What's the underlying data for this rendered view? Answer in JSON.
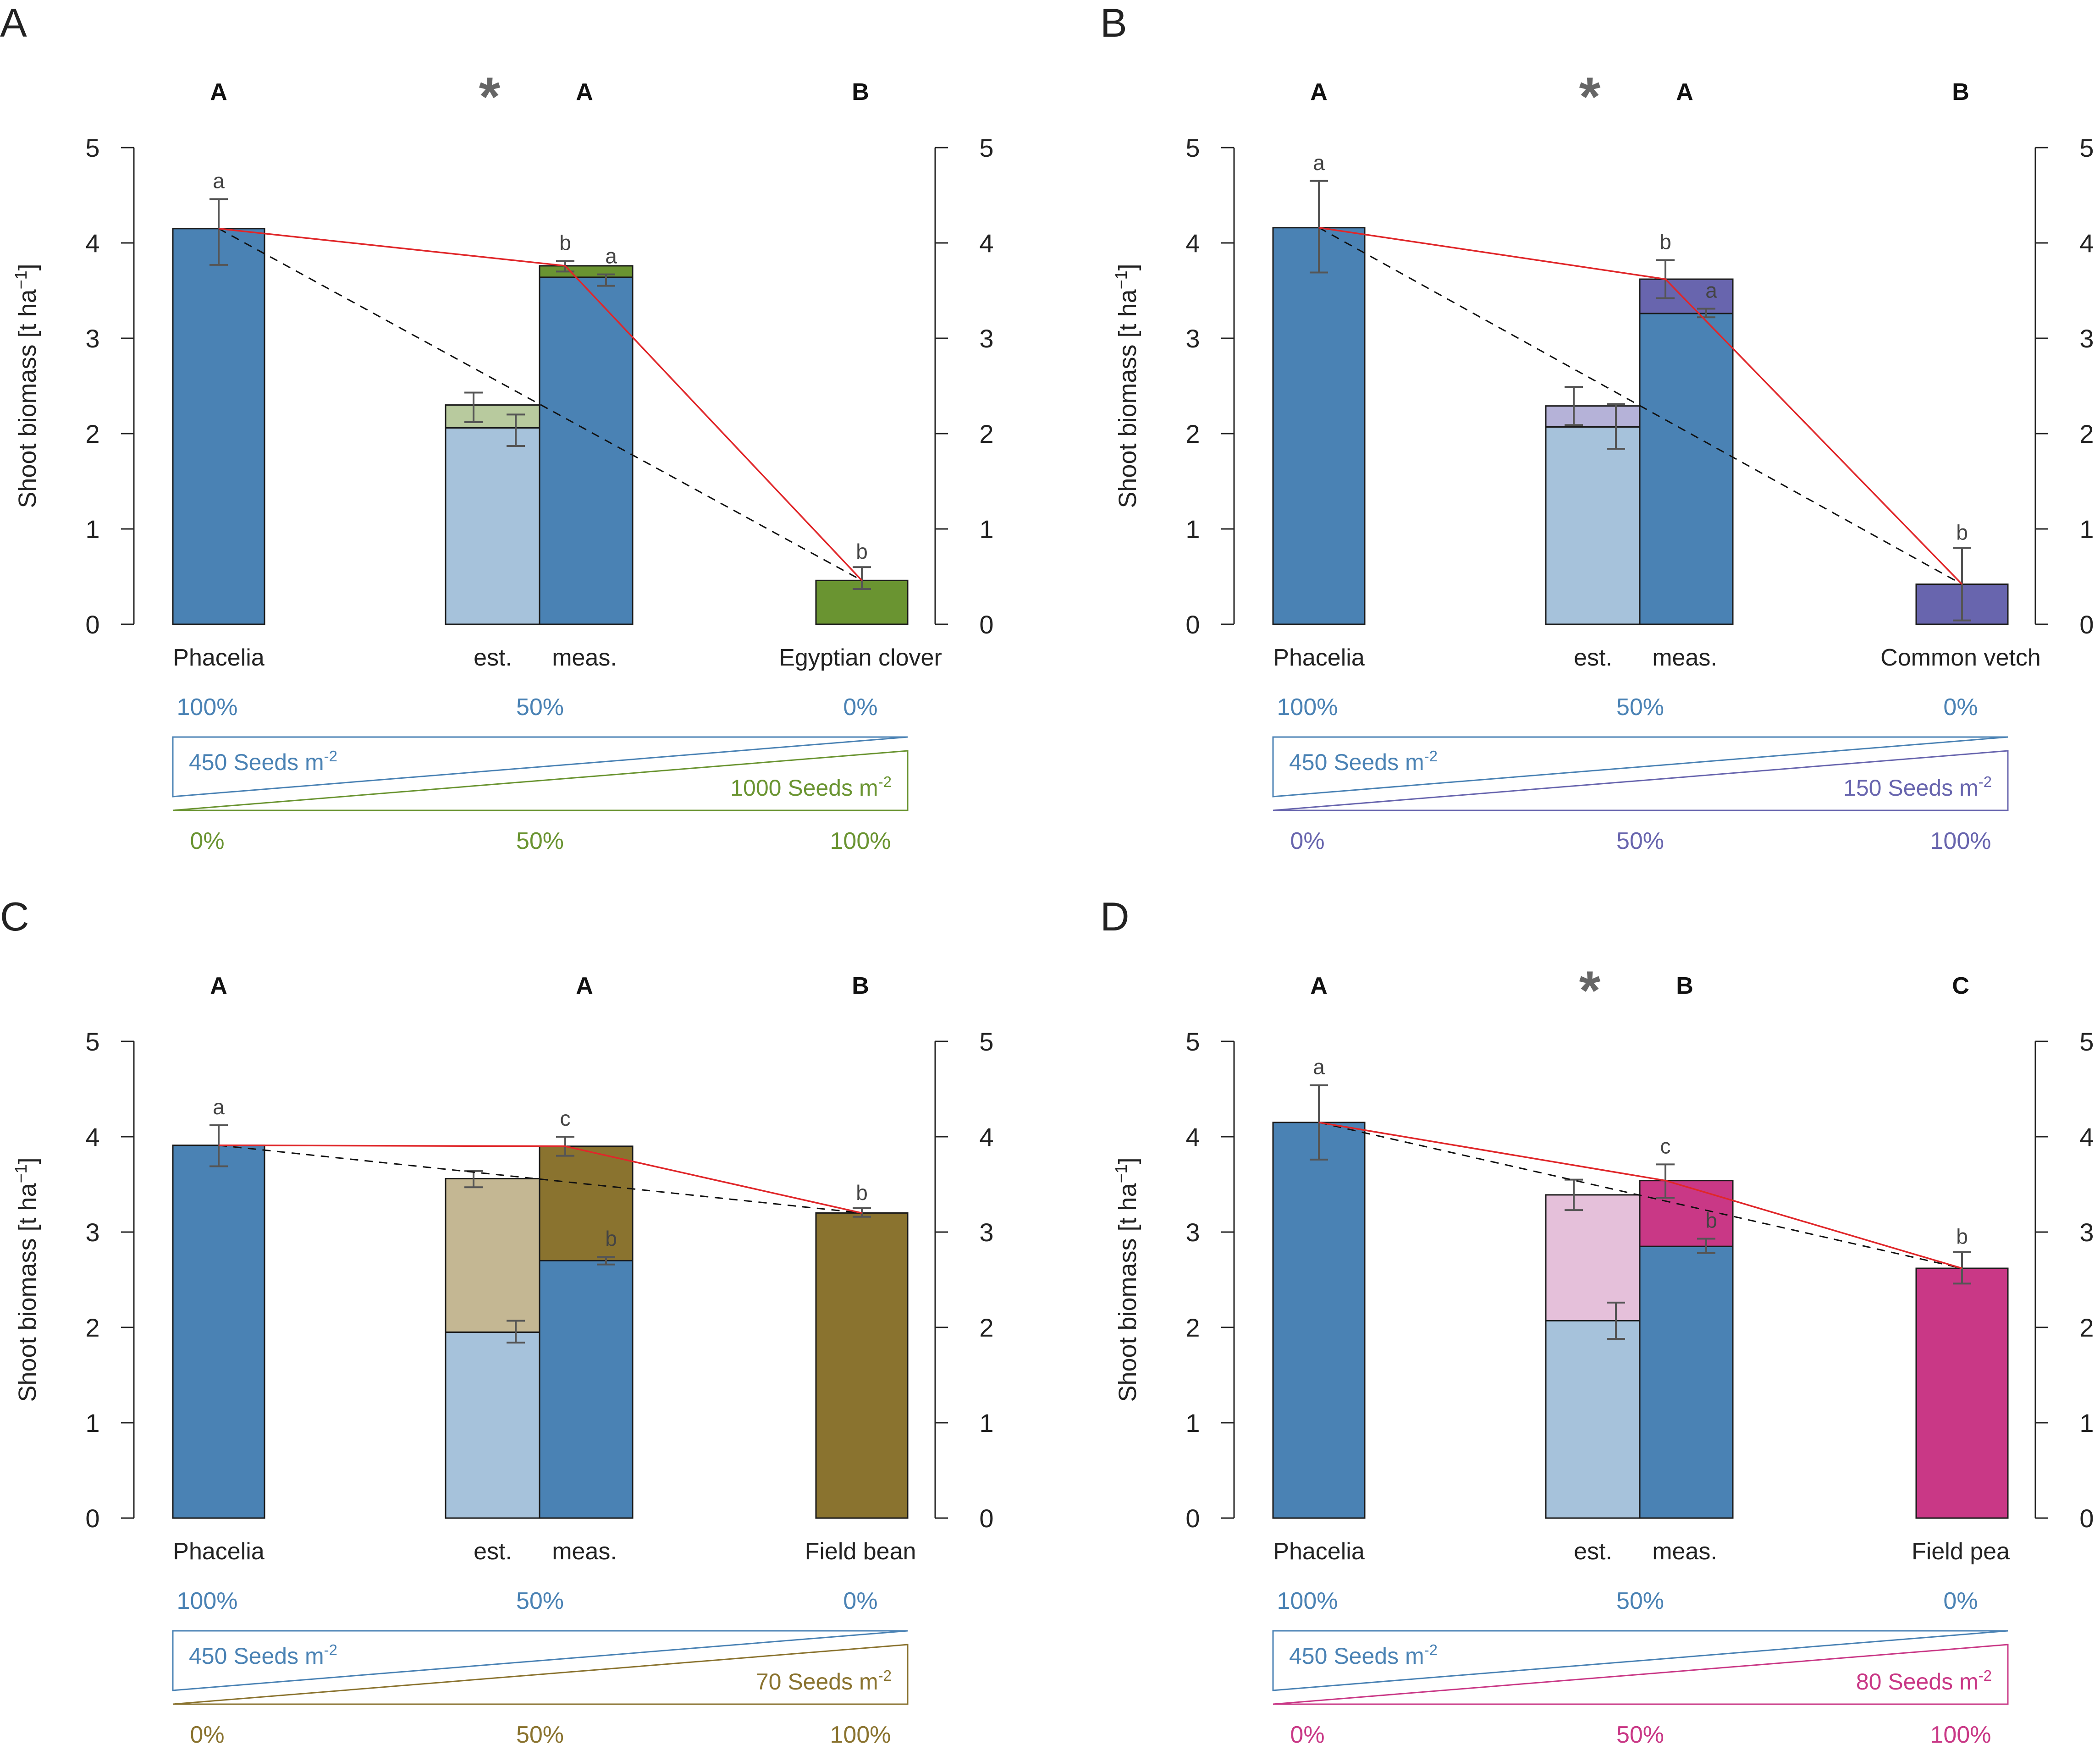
{
  "colors": {
    "phacelia": "#4a82b4",
    "phacelia_light": "#a6c2db",
    "red_line": "#e0272a",
    "axis": "#222222",
    "error_bar": "#555555",
    "asterisk": "#666666"
  },
  "chart_data": [
    {
      "panel": "A",
      "type": "bar",
      "title": "",
      "ylabel": "Shoot biomass [t ha",
      "ylabel_sup": "−1",
      "ylabel_end": "]",
      "ylim": [
        0,
        5
      ],
      "yticks": [
        "0",
        "1",
        "2",
        "3",
        "4",
        "5"
      ],
      "categories": [
        "Phacelia",
        "est.",
        "meas.",
        "Egyptian clover"
      ],
      "group_letters": [
        "A",
        "A",
        "B"
      ],
      "asterisk": "*",
      "legume_color": "#6a9431",
      "legume_light": "#b8ca9e",
      "phacelia": {
        "value": 4.15,
        "err_low": 3.77,
        "err_high": 4.46,
        "letter": "a"
      },
      "est": {
        "phacelia": 2.06,
        "phacelia_err": [
          1.87,
          2.2
        ],
        "total": 2.3,
        "total_err": [
          2.12,
          2.43
        ]
      },
      "meas": {
        "phacelia": 3.64,
        "phacelia_err": [
          3.55,
          3.67
        ],
        "phacelia_letter": "a",
        "total": 3.76,
        "total_err": [
          3.7,
          3.81
        ],
        "total_letter": "b"
      },
      "legume": {
        "value": 0.46,
        "err_low": 0.37,
        "err_high": 0.6,
        "letter": "b"
      },
      "pct_top": [
        "100%",
        "50%",
        "0%"
      ],
      "pct_bottom": [
        "0%",
        "50%",
        "100%"
      ],
      "seed_phacelia": "450 Seeds m",
      "seed_phacelia_sup": "-2",
      "seed_legume": "1000 Seeds m",
      "seed_legume_sup": "-2"
    },
    {
      "panel": "B",
      "type": "bar",
      "title": "",
      "ylabel": "Shoot biomass [t ha",
      "ylabel_sup": "−1",
      "ylabel_end": "]",
      "ylim": [
        0,
        5
      ],
      "yticks": [
        "0",
        "1",
        "2",
        "3",
        "4",
        "5"
      ],
      "categories": [
        "Phacelia",
        "est.",
        "meas.",
        "Common vetch"
      ],
      "group_letters": [
        "A",
        "A",
        "B"
      ],
      "asterisk": "*",
      "legume_color": "#6865ae",
      "legume_light": "#b5b2d8",
      "phacelia": {
        "value": 4.16,
        "err_low": 3.69,
        "err_high": 4.65,
        "letter": "a"
      },
      "est": {
        "phacelia": 2.07,
        "phacelia_err": [
          1.84,
          2.31
        ],
        "total": 2.29,
        "total_err": [
          2.09,
          2.49
        ]
      },
      "meas": {
        "phacelia": 3.26,
        "phacelia_err": [
          3.22,
          3.31
        ],
        "phacelia_letter": "a",
        "total": 3.62,
        "total_err": [
          3.42,
          3.82
        ],
        "total_letter": "b"
      },
      "legume": {
        "value": 0.42,
        "err_low": 0.04,
        "err_high": 0.8,
        "letter": "b"
      },
      "pct_top": [
        "100%",
        "50%",
        "0%"
      ],
      "pct_bottom": [
        "0%",
        "50%",
        "100%"
      ],
      "seed_phacelia": "450 Seeds m",
      "seed_phacelia_sup": "-2",
      "seed_legume": "150 Seeds m",
      "seed_legume_sup": "-2"
    },
    {
      "panel": "C",
      "type": "bar",
      "title": "",
      "ylabel": "Shoot biomass [t ha",
      "ylabel_sup": "−1",
      "ylabel_end": "]",
      "ylim": [
        0,
        5
      ],
      "yticks": [
        "0",
        "1",
        "2",
        "3",
        "4",
        "5"
      ],
      "categories": [
        "Phacelia",
        "est.",
        "meas.",
        "Field bean"
      ],
      "group_letters": [
        "A",
        "A",
        "B"
      ],
      "asterisk": "",
      "legume_color": "#8a732f",
      "legume_light": "#c4b793",
      "phacelia": {
        "value": 3.91,
        "err_low": 3.69,
        "err_high": 4.12,
        "letter": "a"
      },
      "est": {
        "phacelia": 1.95,
        "phacelia_err": [
          1.84,
          2.07
        ],
        "total": 3.56,
        "total_err": [
          3.47,
          3.64
        ]
      },
      "meas": {
        "phacelia": 2.7,
        "phacelia_err": [
          2.66,
          2.74
        ],
        "phacelia_letter": "b",
        "total": 3.9,
        "total_err": [
          3.8,
          4.0
        ],
        "total_letter": "c"
      },
      "legume": {
        "value": 3.2,
        "err_low": 3.16,
        "err_high": 3.25,
        "letter": "b"
      },
      "pct_top": [
        "100%",
        "50%",
        "0%"
      ],
      "pct_bottom": [
        "0%",
        "50%",
        "100%"
      ],
      "seed_phacelia": "450 Seeds m",
      "seed_phacelia_sup": "-2",
      "seed_legume": "70 Seeds m",
      "seed_legume_sup": "-2"
    },
    {
      "panel": "D",
      "type": "bar",
      "title": "",
      "ylabel": "Shoot biomass [t ha",
      "ylabel_sup": "−1",
      "ylabel_end": "]",
      "ylim": [
        0,
        5
      ],
      "yticks": [
        "0",
        "1",
        "2",
        "3",
        "4",
        "5"
      ],
      "categories": [
        "Phacelia",
        "est.",
        "meas.",
        "Field pea"
      ],
      "group_letters": [
        "A",
        "B",
        "C"
      ],
      "asterisk": "*",
      "legume_color": "#c93886",
      "legume_light": "#e5c0da",
      "phacelia": {
        "value": 4.15,
        "err_low": 3.76,
        "err_high": 4.54,
        "letter": "a"
      },
      "est": {
        "phacelia": 2.07,
        "phacelia_err": [
          1.88,
          2.26
        ],
        "total": 3.39,
        "total_err": [
          3.23,
          3.55
        ]
      },
      "meas": {
        "phacelia": 2.85,
        "phacelia_err": [
          2.78,
          2.93
        ],
        "phacelia_letter": "b",
        "total": 3.54,
        "total_err": [
          3.36,
          3.71
        ],
        "total_letter": "c"
      },
      "legume": {
        "value": 2.62,
        "err_low": 2.46,
        "err_high": 2.79,
        "letter": "b"
      },
      "pct_top": [
        "100%",
        "50%",
        "0%"
      ],
      "pct_bottom": [
        "0%",
        "50%",
        "100%"
      ],
      "seed_phacelia": "450 Seeds m",
      "seed_phacelia_sup": "-2",
      "seed_legume": "80 Seeds m",
      "seed_legume_sup": "-2"
    }
  ]
}
